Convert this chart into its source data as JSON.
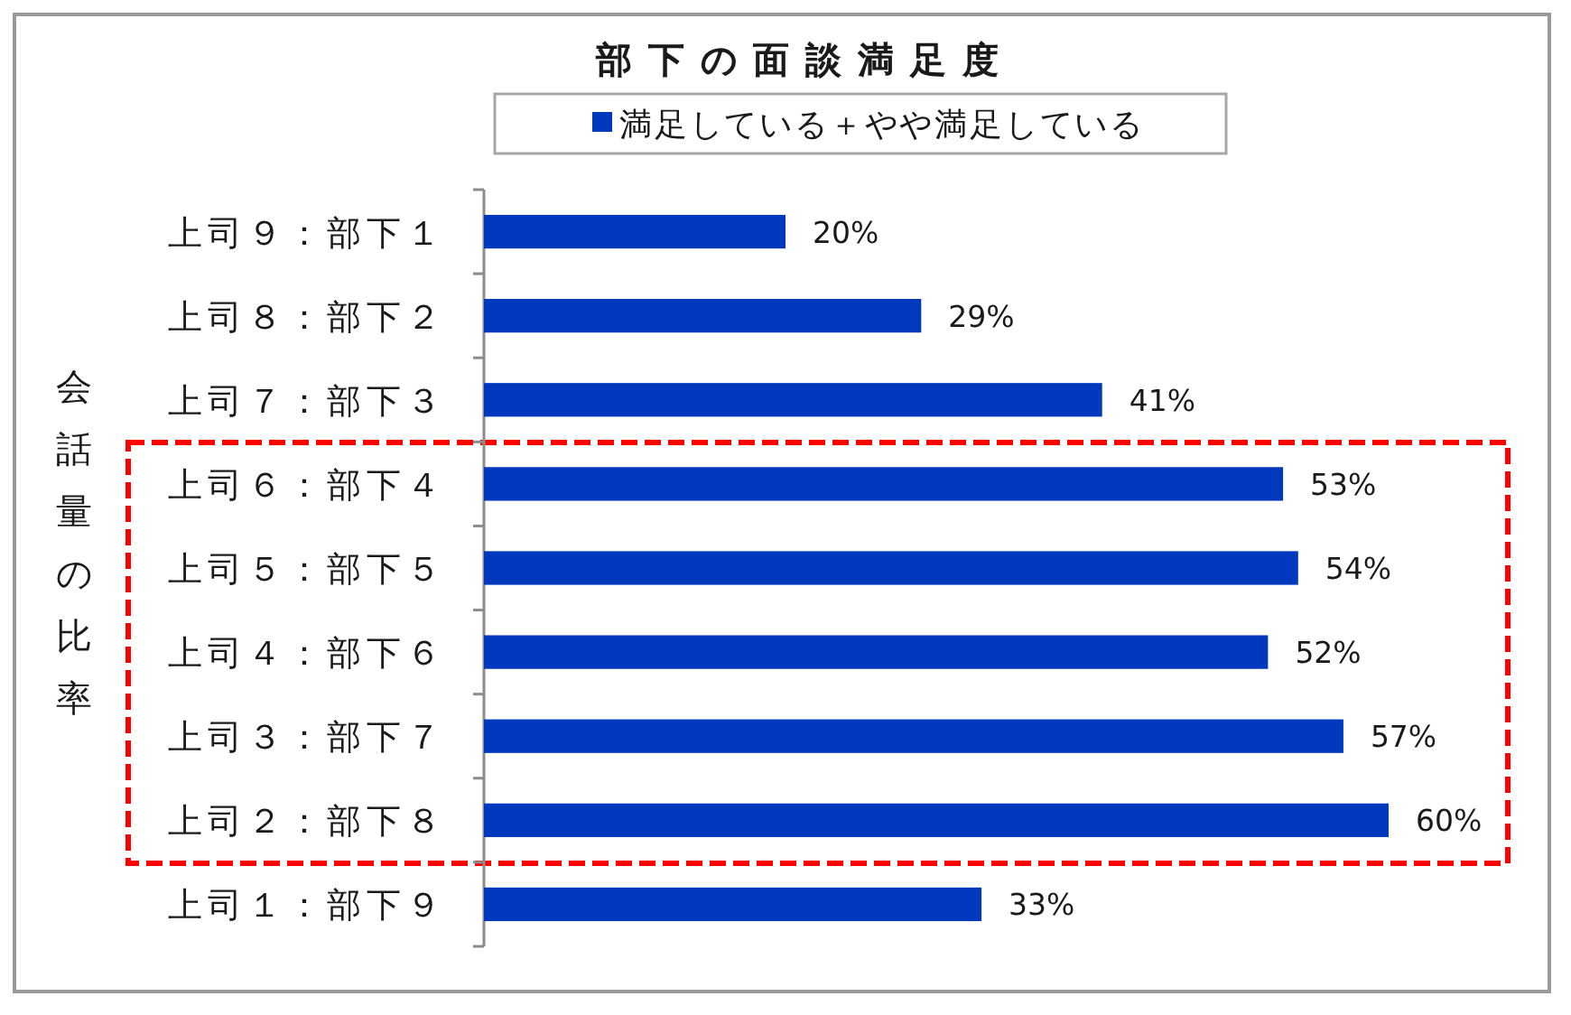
{
  "chart_data": {
    "type": "bar",
    "orientation": "horizontal",
    "title": "部下の面談満足度",
    "ylabel": "会話量の比率",
    "categories": [
      "上司９：部下１",
      "上司８：部下２",
      "上司７：部下３",
      "上司６：部下４",
      "上司５：部下５",
      "上司４：部下６",
      "上司３：部下７",
      "上司２：部下８",
      "上司１：部下９"
    ],
    "series": [
      {
        "name": "満足している＋やや満足している",
        "color": "#0039bd",
        "values": [
          20,
          29,
          41,
          53,
          54,
          52,
          57,
          60,
          33
        ],
        "value_labels": [
          "20%",
          "29%",
          "41%",
          "53%",
          "54%",
          "52%",
          "57%",
          "60%",
          "33%"
        ]
      }
    ],
    "legend": "top",
    "tick_labels": "y"
  }
}
